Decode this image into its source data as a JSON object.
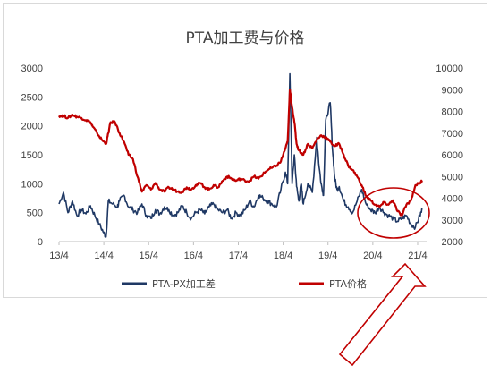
{
  "chart_data": {
    "type": "line",
    "title": "PTA加工费与价格",
    "x_tick_labels": [
      "13/4",
      "14/4",
      "15/4",
      "16/4",
      "17/4",
      "18/4",
      "19/4",
      "20/4",
      "21/4"
    ],
    "y_left": {
      "ylim": [
        0,
        3000
      ],
      "ticks": [
        0,
        500,
        1000,
        1500,
        2000,
        2500,
        3000
      ]
    },
    "y_right": {
      "ylim": [
        2000,
        10000
      ],
      "ticks": [
        2000,
        3000,
        4000,
        5000,
        6000,
        7000,
        8000,
        9000,
        10000
      ]
    },
    "grid": false,
    "legend_position": "bottom",
    "series": [
      {
        "name": "PTA-PX加工差",
        "axis": "left",
        "color": "#1f3864",
        "x": [
          2013.25,
          2013.35,
          2013.45,
          2013.55,
          2013.65,
          2013.75,
          2013.85,
          2013.95,
          2014.05,
          2014.15,
          2014.25,
          2014.3,
          2014.35,
          2014.45,
          2014.55,
          2014.6,
          2014.7,
          2014.8,
          2014.9,
          2015.0,
          2015.1,
          2015.2,
          2015.3,
          2015.4,
          2015.5,
          2015.6,
          2015.7,
          2015.8,
          2015.9,
          2016.0,
          2016.1,
          2016.2,
          2016.3,
          2016.4,
          2016.5,
          2016.6,
          2016.7,
          2016.8,
          2016.9,
          2017.0,
          2017.1,
          2017.2,
          2017.3,
          2017.4,
          2017.5,
          2017.6,
          2017.7,
          2017.8,
          2017.9,
          2018.0,
          2018.1,
          2018.2,
          2018.3,
          2018.35,
          2018.4,
          2018.45,
          2018.5,
          2018.55,
          2018.6,
          2018.65,
          2018.7,
          2018.8,
          2018.9,
          2019.0,
          2019.05,
          2019.1,
          2019.15,
          2019.2,
          2019.3,
          2019.35,
          2019.4,
          2019.45,
          2019.5,
          2019.6,
          2019.7,
          2019.8,
          2019.9,
          2020.0,
          2020.1,
          2020.2,
          2020.3,
          2020.4,
          2020.5,
          2020.6,
          2020.7,
          2020.8,
          2020.9,
          2021.0,
          2021.1,
          2021.2,
          2021.3,
          2021.35
        ],
        "values": [
          650,
          850,
          500,
          700,
          450,
          550,
          480,
          620,
          450,
          300,
          150,
          80,
          700,
          650,
          600,
          700,
          800,
          600,
          550,
          500,
          650,
          450,
          400,
          550,
          480,
          600,
          550,
          450,
          500,
          620,
          500,
          400,
          500,
          550,
          480,
          600,
          650,
          550,
          500,
          550,
          400,
          500,
          450,
          550,
          700,
          600,
          800,
          750,
          700,
          650,
          600,
          900,
          1200,
          1000,
          2900,
          1000,
          1500,
          950,
          700,
          1000,
          650,
          1000,
          850,
          1800,
          1300,
          1000,
          800,
          2100,
          2400,
          1600,
          1100,
          900,
          950,
          700,
          600,
          500,
          700,
          900,
          650,
          550,
          500,
          600,
          500,
          450,
          400,
          350,
          400,
          450,
          300,
          250,
          450,
          550
        ]
      },
      {
        "name": "PTA价格",
        "axis": "right",
        "color": "#c00000",
        "x": [
          2013.25,
          2013.35,
          2013.45,
          2013.55,
          2013.65,
          2013.75,
          2013.85,
          2013.95,
          2014.0,
          2014.1,
          2014.2,
          2014.3,
          2014.35,
          2014.4,
          2014.5,
          2014.6,
          2014.7,
          2014.8,
          2014.9,
          2015.0,
          2015.1,
          2015.2,
          2015.3,
          2015.4,
          2015.5,
          2015.6,
          2015.7,
          2015.8,
          2015.9,
          2016.0,
          2016.1,
          2016.2,
          2016.3,
          2016.4,
          2016.5,
          2016.6,
          2016.7,
          2016.8,
          2016.9,
          2017.0,
          2017.1,
          2017.2,
          2017.3,
          2017.4,
          2017.5,
          2017.6,
          2017.7,
          2017.8,
          2017.9,
          2018.0,
          2018.1,
          2018.2,
          2018.3,
          2018.35,
          2018.4,
          2018.45,
          2018.5,
          2018.55,
          2018.6,
          2018.7,
          2018.8,
          2018.9,
          2019.0,
          2019.1,
          2019.2,
          2019.3,
          2019.4,
          2019.5,
          2019.6,
          2019.7,
          2019.8,
          2019.9,
          2020.0,
          2020.1,
          2020.2,
          2020.3,
          2020.4,
          2020.5,
          2020.6,
          2020.7,
          2020.8,
          2020.9,
          2021.0,
          2021.1,
          2021.2,
          2021.3,
          2021.35
        ],
        "values": [
          7800,
          7800,
          7700,
          7850,
          7750,
          7700,
          7600,
          7500,
          7300,
          7000,
          6700,
          6500,
          7000,
          7500,
          7500,
          7000,
          6600,
          6000,
          5800,
          5000,
          4300,
          4600,
          4400,
          4700,
          4400,
          4300,
          4500,
          4400,
          4300,
          4300,
          4500,
          4400,
          4600,
          4700,
          4500,
          4400,
          4600,
          4500,
          4800,
          5000,
          4900,
          4800,
          4900,
          4800,
          4800,
          5000,
          4900,
          5100,
          5300,
          5400,
          5500,
          5700,
          6300,
          6600,
          9000,
          8200,
          7500,
          6500,
          6200,
          6000,
          6500,
          6300,
          6700,
          6900,
          6800,
          6600,
          6400,
          6500,
          6000,
          5500,
          5300,
          5000,
          4600,
          4100,
          3900,
          3700,
          3600,
          3800,
          3700,
          3900,
          3400,
          3200,
          3700,
          3900,
          4600,
          4700,
          4800
        ]
      }
    ]
  }
}
